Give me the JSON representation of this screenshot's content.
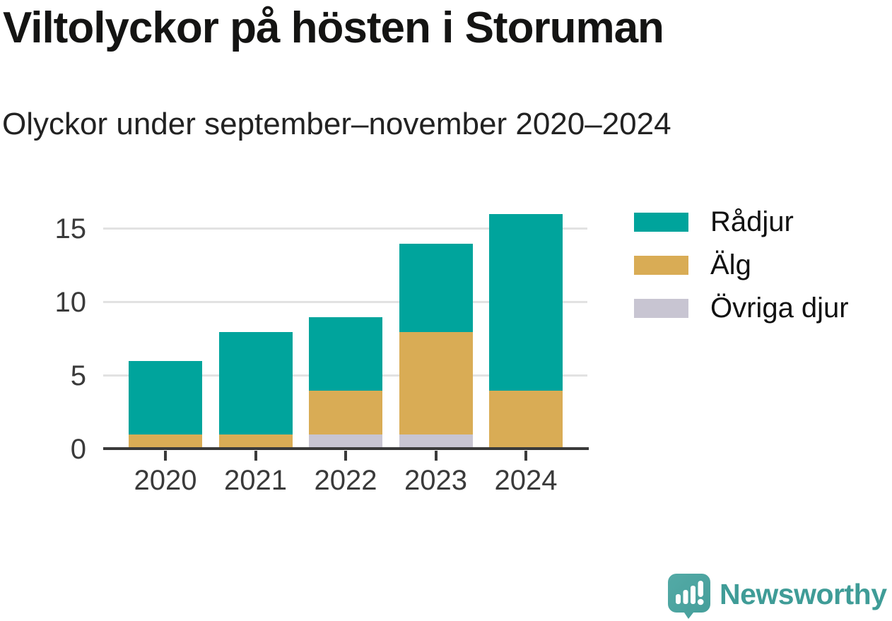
{
  "header": {
    "title": "Viltolyckor på hösten i Storuman",
    "subtitle": "Olyckor under september–november 2020–2024"
  },
  "chart_data": {
    "type": "bar",
    "stacked": true,
    "title": "Viltolyckor på hösten i Storuman",
    "subtitle": "Olyckor under september–november 2020–2024",
    "categories": [
      "2020",
      "2021",
      "2022",
      "2023",
      "2024"
    ],
    "series": [
      {
        "name": "Rådjur",
        "color": "#00A49C",
        "values": [
          5,
          7,
          5,
          6,
          12
        ]
      },
      {
        "name": "Älg",
        "color": "#D9AC55",
        "values": [
          1,
          1,
          3,
          7,
          4
        ]
      },
      {
        "name": "Övriga djur",
        "color": "#C8C5D2",
        "values": [
          0,
          0,
          1,
          1,
          0
        ]
      }
    ],
    "stack_order_bottom_to_top": [
      "Övriga djur",
      "Älg",
      "Rådjur"
    ],
    "xlabel": "",
    "ylabel": "",
    "yticks": [
      0,
      5,
      10,
      15
    ],
    "ylim": [
      0,
      16.6
    ],
    "grid": "horizontal",
    "legend_position": "right"
  },
  "colors": {
    "gridline": "#E2E2E2",
    "axis": "#3A3A3A",
    "tick_label": "#3A3A3A",
    "brand_teal": "#3F9C97",
    "brand_icon_fill": "#4DA5A1"
  },
  "branding": {
    "logo_text": "Newsworthy",
    "logo_icon": "bar-chart-speech-bubble-icon"
  }
}
